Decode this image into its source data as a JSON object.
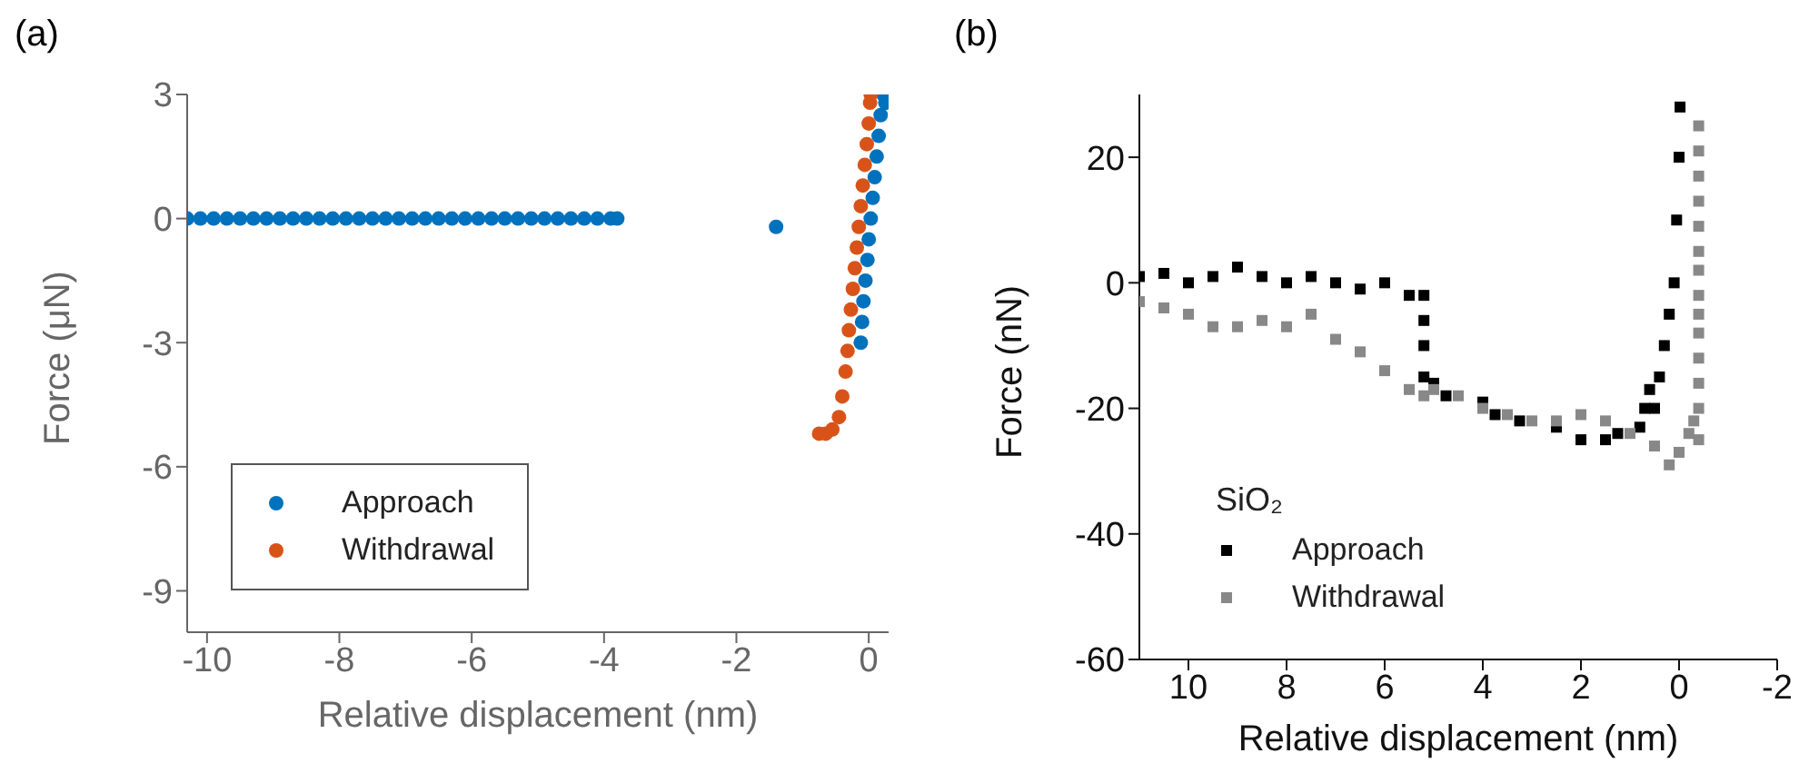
{
  "chart_data": [
    {
      "type": "scatter",
      "title": "(a)",
      "xlabel": "Relative displacement (nm)",
      "ylabel": "Force (μN)",
      "xlim": [
        -10.3,
        0.3
      ],
      "xticks": [
        -10,
        -8,
        -6,
        -4,
        -2,
        0
      ],
      "ylim": [
        -10,
        3
      ],
      "yticks": [
        -9,
        -6,
        -3,
        0,
        3
      ],
      "marker": "circle",
      "legend": "bottom left",
      "series": [
        {
          "name": "Approach",
          "color": "#0072bd",
          "x": [
            -10.3,
            -10.1,
            -9.9,
            -9.7,
            -9.5,
            -9.3,
            -9.1,
            -8.9,
            -8.7,
            -8.5,
            -8.3,
            -8.1,
            -7.9,
            -7.7,
            -7.5,
            -7.3,
            -7.1,
            -6.9,
            -6.7,
            -6.5,
            -6.3,
            -6.1,
            -5.9,
            -5.7,
            -5.5,
            -5.3,
            -5.1,
            -4.9,
            -4.7,
            -4.5,
            -4.3,
            -4.1,
            -3.9,
            -3.8,
            -1.4,
            -0.12,
            -0.1,
            -0.08,
            -0.05,
            -0.02,
            0,
            0.03,
            0.06,
            0.09,
            0.12,
            0.15,
            0.18,
            0.22,
            0.25
          ],
          "values": [
            0,
            0,
            0,
            0,
            0,
            0,
            0,
            0,
            0,
            0,
            0,
            0,
            0,
            0,
            0,
            0,
            0,
            0,
            0,
            0,
            0,
            0,
            0,
            0,
            0,
            0,
            0,
            0,
            0,
            0,
            0,
            0,
            0,
            0,
            -0.2,
            -3,
            -2.5,
            -2,
            -1.5,
            -1,
            -0.5,
            0,
            0.5,
            1,
            1.5,
            2,
            2.5,
            3,
            2.8
          ]
        },
        {
          "name": "Withdrawal",
          "color": "#d95319",
          "x": [
            -0.75,
            -0.65,
            -0.55,
            -0.45,
            -0.4,
            -0.35,
            -0.32,
            -0.3,
            -0.27,
            -0.24,
            -0.21,
            -0.18,
            -0.15,
            -0.12,
            -0.09,
            -0.06,
            -0.03,
            0,
            0.02,
            0.03
          ],
          "values": [
            -5.2,
            -5.2,
            -5.1,
            -4.8,
            -4.3,
            -3.7,
            -3.2,
            -2.7,
            -2.2,
            -1.7,
            -1.2,
            -0.7,
            -0.2,
            0.3,
            0.8,
            1.3,
            1.8,
            2.3,
            2.8,
            3
          ]
        }
      ]
    },
    {
      "type": "scatter",
      "title": "(b)",
      "xlabel": "Relative displacement (nm)",
      "ylabel": "Force (nN)",
      "legend_title": "SiO₂",
      "xlim": [
        11,
        -2
      ],
      "xticks": [
        10,
        8,
        6,
        4,
        2,
        0,
        -2
      ],
      "ylim": [
        -60,
        30
      ],
      "yticks": [
        -60,
        -40,
        -20,
        0,
        20
      ],
      "marker": "square",
      "legend": "bottom left",
      "series": [
        {
          "name": "Approach",
          "color": "#000000",
          "x": [
            11,
            10.5,
            10,
            9.5,
            9,
            8.5,
            8,
            7.5,
            7,
            6.5,
            6,
            5.5,
            5.2,
            5.2,
            5.2,
            5.2,
            5,
            4.75,
            4,
            3.75,
            3.25,
            2.5,
            2,
            1.5,
            1.25,
            0.8,
            0.7,
            0.6,
            0.5,
            0.4,
            0.3,
            0.2,
            0.1,
            0.05,
            0,
            -0.02
          ],
          "values": [
            1,
            1.5,
            0,
            1,
            2.5,
            1,
            0,
            1,
            0,
            -1,
            0,
            -2,
            -2,
            -6,
            -10,
            -15,
            -16,
            -18,
            -19,
            -21,
            -22,
            -23,
            -25,
            -25,
            -24,
            -23,
            -20,
            -17,
            -20,
            -15,
            -10,
            -5,
            0,
            10,
            20,
            28
          ]
        },
        {
          "name": "Withdrawal",
          "color": "#888888",
          "x": [
            11,
            10.5,
            10,
            9.5,
            9,
            8.5,
            8,
            7.5,
            7,
            6.5,
            6,
            5.5,
            5.2,
            5,
            4.5,
            4,
            3.5,
            3,
            2.5,
            2,
            1.5,
            1,
            0.5,
            0.2,
            0,
            -0.2,
            -0.3,
            -0.4,
            -0.4,
            -0.4,
            -0.4,
            -0.4,
            -0.4,
            -0.4,
            -0.4,
            -0.4,
            -0.4,
            -0.4,
            -0.4,
            -0.4,
            -0.4
          ],
          "values": [
            -3,
            -4,
            -5,
            -7,
            -7,
            -6,
            -7,
            -5,
            -9,
            -11,
            -14,
            -17,
            -18,
            -17,
            -18,
            -20,
            -21,
            -22,
            -22,
            -21,
            -22,
            -24,
            -26,
            -29,
            -27,
            -24,
            -22,
            -25,
            -20,
            -16,
            -12,
            -8,
            -5,
            -2,
            2,
            5,
            9,
            13,
            17,
            21,
            25
          ]
        }
      ]
    }
  ]
}
